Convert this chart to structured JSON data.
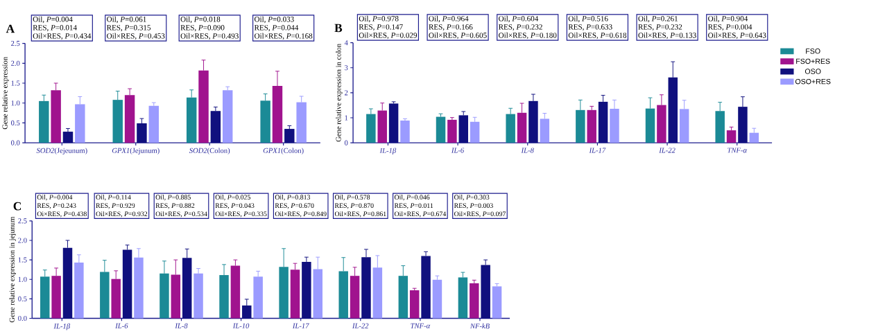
{
  "chart_data": [
    {
      "type": "bar",
      "title": "A",
      "ylabel": "Gene relative expression",
      "categories": [
        "*SOD2*(Jejeunum)",
        "*GPX1*(Jejunum)",
        "*SOD2*(Colon)",
        "*GPX1*(Colon)"
      ],
      "series": [
        {
          "color": "#1b8a96",
          "values": [
            1.05,
            1.08,
            1.14,
            1.06
          ],
          "errors": [
            0.15,
            0.22,
            0.19,
            0.17
          ]
        },
        {
          "color": "#a0138e",
          "values": [
            1.32,
            1.2,
            1.82,
            1.43
          ],
          "errors": [
            0.18,
            0.16,
            0.26,
            0.37
          ]
        },
        {
          "color": "#10107e",
          "values": [
            0.28,
            0.49,
            0.8,
            0.35
          ],
          "errors": [
            0.08,
            0.12,
            0.1,
            0.08
          ]
        },
        {
          "color": "#9b9bff",
          "values": [
            0.97,
            0.93,
            1.32,
            1.02
          ],
          "errors": [
            0.19,
            0.08,
            0.09,
            0.15
          ]
        }
      ],
      "ylim": [
        0,
        2.5
      ],
      "yticks": [
        {
          "value": 0,
          "label": "0.0"
        },
        {
          "value": 0.5,
          "label": "0.5"
        },
        {
          "value": 1,
          "label": "1.0"
        },
        {
          "value": 1.5,
          "label": "1.5"
        },
        {
          "value": 2,
          "label": "2.0"
        },
        {
          "value": 2.5,
          "label": "2.5"
        }
      ],
      "annotations": [
        "Oil, *P*=0.004",
        "RES, *P*=0.014",
        "Oil×RES, *P*=0.434",
        "Oil, *P*=0.061",
        "RES, *P*=0.315",
        "Oil×RES, *P*=0.453",
        "Oil, *P*=0.018",
        "RES, *P*=0.090",
        "Oil×RES, *P*=0.493",
        "Oil, *P*=0.033",
        "RES, *P*=0.044",
        "Oil×RES, *P*=0.168"
      ]
    },
    {
      "type": "bar",
      "title": "B",
      "ylabel": "Gene relative expression in colon",
      "categories": [
        "IL-1β",
        "IL-6",
        "IL-8",
        "IL-17",
        "IL-22",
        "TNF-α"
      ],
      "series": [
        {
          "name": "FSO",
          "color": "#1b8a96",
          "values": [
            1.15,
            1.04,
            1.15,
            1.31,
            1.37,
            1.27
          ],
          "errors": [
            0.21,
            0.12,
            0.23,
            0.4,
            0.43,
            0.35
          ]
        },
        {
          "name": "FSO+RES",
          "color": "#a0138e",
          "values": [
            1.29,
            0.92,
            1.2,
            1.31,
            1.51,
            0.5
          ],
          "errors": [
            0.3,
            0.09,
            0.38,
            0.15,
            0.41,
            0.13
          ]
        },
        {
          "name": "OSO",
          "color": "#10107e",
          "values": [
            1.57,
            1.1,
            1.67,
            1.64,
            2.61,
            1.44
          ],
          "errors": [
            0.07,
            0.15,
            0.27,
            0.26,
            0.63,
            0.4
          ]
        },
        {
          "name": "OSO+RES",
          "color": "#9b9bff",
          "values": [
            0.89,
            0.84,
            0.96,
            1.36,
            1.35,
            0.4
          ],
          "errors": [
            0.07,
            0.18,
            0.22,
            0.35,
            0.35,
            0.18
          ]
        }
      ],
      "ylim": [
        0,
        4
      ],
      "yticks": [
        0,
        1,
        2,
        3,
        4
      ],
      "legend": "right",
      "annotations": [
        "Oil, *P*=0.978",
        "RES, *P*=0.147",
        "Oil×RES, *P*=0.029",
        "Oil, *P*=0.964",
        "RES, *P*=0.166",
        "Oil×RES, *P*=0.605",
        "Oil, *P*=0.604",
        "RES, *P*=0.232",
        "Oil×RES, *P*=0.180",
        "Oil, *P*=0.516",
        "RES, *P*=0.633",
        "Oil×RES, *P*=0.618",
        "Oil, *P*=0.261",
        "RES, *P*=0.232",
        "Oil×RES, *P*=0.133",
        "Oil, *P*=0.904",
        "RES, *P*=0.004",
        "Oil×RES, *P*=0.643"
      ]
    },
    {
      "type": "bar",
      "title": "C",
      "ylabel": "Gene relative expression in jejunum",
      "categories": [
        "IL-1β",
        "IL-6",
        "IL-8",
        "IL-10",
        "IL-17",
        "IL-22",
        "TNF-α",
        "NF-kB"
      ],
      "series": [
        {
          "color": "#1b8a96",
          "values": [
            1.07,
            1.19,
            1.15,
            1.11,
            1.32,
            1.21,
            1.09,
            1.05
          ],
          "errors": [
            0.17,
            0.3,
            0.32,
            0.27,
            0.47,
            0.35,
            0.26,
            0.13
          ]
        },
        {
          "color": "#a0138e",
          "values": [
            1.09,
            1.01,
            1.12,
            1.35,
            1.25,
            1.09,
            0.72,
            0.9
          ],
          "errors": [
            0.2,
            0.21,
            0.38,
            0.15,
            0.16,
            0.22,
            0.05,
            0.08
          ]
        },
        {
          "color": "#10107e",
          "values": [
            1.81,
            1.76,
            1.55,
            0.33,
            1.45,
            1.57,
            1.6,
            1.37
          ],
          "errors": [
            0.19,
            0.12,
            0.23,
            0.16,
            0.12,
            0.2,
            0.11,
            0.13
          ]
        },
        {
          "color": "#9b9bff",
          "values": [
            1.43,
            1.56,
            1.15,
            1.07,
            1.26,
            1.3,
            0.99,
            0.82
          ],
          "errors": [
            0.2,
            0.23,
            0.13,
            0.14,
            0.31,
            0.31,
            0.1,
            0.07
          ]
        }
      ],
      "ylim": [
        0,
        2.5
      ],
      "yticks": [
        {
          "value": 0,
          "label": "0.0"
        },
        {
          "value": 0.5,
          "label": "0.5"
        },
        {
          "value": 1,
          "label": "1.0"
        },
        {
          "value": 1.5,
          "label": "1.5"
        },
        {
          "value": 2,
          "label": "2.0"
        },
        {
          "value": 2.5,
          "label": "2.5"
        }
      ],
      "annotations": [
        "Oil, *P*=0.004",
        "RES, *P*=0.243",
        "Oi×RES, *P*=0.438",
        "Oil, *P*=0.114",
        "RES, *P*=0.929",
        "Oil×RES, *P*=0.932",
        "Oil, *P*=0.885",
        "RES, *P*=0.882",
        "Oil×RES, *P*=0.534",
        "Oil, *P*=0.025",
        "RES, *P*=0.043",
        "Oil×RES, *P*=0.335",
        "Oil, *P*=0.813",
        "RES, *P*=0.670",
        "Oil×RES, *P*=0.849",
        "Oil, *P*=0.578",
        "RES, *P*=0.870",
        "Oil×RES, *P*=0.861",
        "Oil, *P*=0.046",
        "RES, *P*=0.011",
        "Oil×RES, *P*=0.674",
        "Oil, *P*=0.303",
        "RES, *P*=0.003",
        "Oil×RES, *P*=0.097"
      ]
    }
  ]
}
